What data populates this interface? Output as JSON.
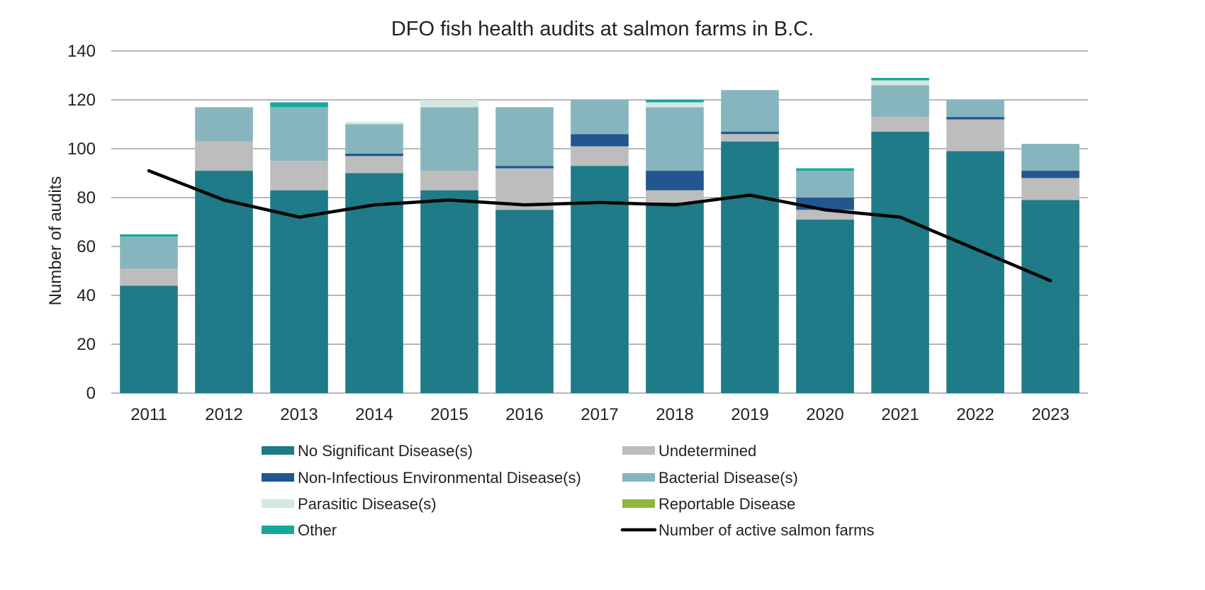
{
  "chart_data": {
    "type": "bar",
    "stacked": true,
    "title": "DFO fish health audits at salmon farms in B.C.",
    "xlabel": "",
    "ylabel": "Number of audits",
    "ylim": [
      0,
      140
    ],
    "yticks": [
      0,
      20,
      40,
      60,
      80,
      100,
      120,
      140
    ],
    "grid": true,
    "legend_position": "bottom",
    "categories": [
      "2011",
      "2012",
      "2013",
      "2014",
      "2015",
      "2016",
      "2017",
      "2018",
      "2019",
      "2020",
      "2021",
      "2022",
      "2023"
    ],
    "series": [
      {
        "name": "No Significant Disease(s)",
        "color": "#1e7b87",
        "values": [
          44,
          91,
          83,
          90,
          83,
          75,
          93,
          78,
          103,
          71,
          107,
          99,
          79
        ]
      },
      {
        "name": "Undetermined",
        "color": "#bdbdbd",
        "values": [
          7,
          12,
          12,
          7,
          8,
          17,
          8,
          5,
          3,
          4,
          6,
          13,
          9
        ]
      },
      {
        "name": "Non-Infectious Environmental Disease(s)",
        "color": "#22568f",
        "values": [
          0,
          0,
          0,
          1,
          0,
          1,
          5,
          8,
          1,
          5,
          0,
          1,
          3
        ]
      },
      {
        "name": "Bacterial Disease(s)",
        "color": "#87b5bd",
        "values": [
          13,
          14,
          22,
          12,
          26,
          24,
          14,
          26,
          17,
          11,
          13,
          7,
          11
        ]
      },
      {
        "name": "Parasitic Disease(s)",
        "color": "#d5e6e3",
        "values": [
          0,
          0,
          0,
          1,
          3,
          0,
          0,
          2,
          0,
          0,
          2,
          0,
          0
        ]
      },
      {
        "name": "Reportable Disease",
        "color": "#8db83a",
        "values": [
          0,
          0,
          0,
          0,
          0,
          0,
          0,
          0,
          0,
          0,
          0,
          0,
          0
        ]
      },
      {
        "name": "Other",
        "color": "#15a99c",
        "values": [
          1,
          0,
          2,
          0,
          0,
          0,
          0,
          1,
          0,
          1,
          1,
          0,
          0
        ]
      }
    ],
    "line_series": {
      "name": "Number of active salmon farms",
      "color": "#000000",
      "values": [
        91,
        79,
        72,
        77,
        79,
        77,
        78,
        77,
        81,
        75,
        72,
        59,
        46
      ]
    },
    "legend": [
      {
        "name": "No Significant Disease(s)",
        "kind": "bar",
        "color": "#1e7b87"
      },
      {
        "name": "Undetermined",
        "kind": "bar",
        "color": "#bdbdbd"
      },
      {
        "name": "Non-Infectious Environmental Disease(s)",
        "kind": "bar",
        "color": "#22568f"
      },
      {
        "name": "Bacterial Disease(s)",
        "kind": "bar",
        "color": "#87b5bd"
      },
      {
        "name": "Parasitic Disease(s)",
        "kind": "bar",
        "color": "#d5e6e3"
      },
      {
        "name": "Reportable Disease",
        "kind": "bar",
        "color": "#8db83a"
      },
      {
        "name": "Other",
        "kind": "bar",
        "color": "#15a99c"
      },
      {
        "name": "Number of active salmon farms",
        "kind": "line",
        "color": "#000000"
      }
    ]
  }
}
